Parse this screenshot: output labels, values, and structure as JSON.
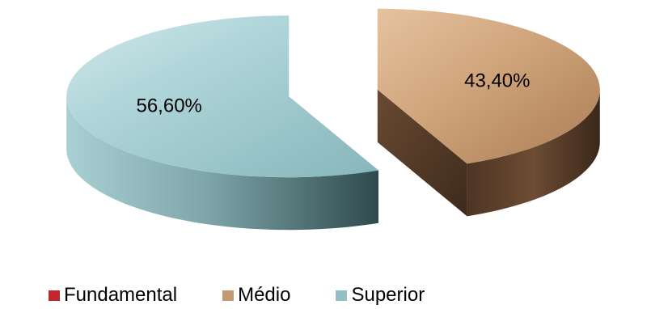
{
  "chart_data": {
    "type": "pie",
    "style": "3d-exploded",
    "categories": [
      "Fundamental",
      "Médio",
      "Superior"
    ],
    "values": [
      0,
      43.4,
      56.6
    ],
    "data_labels": [
      "",
      "43,40%",
      "56,60%"
    ],
    "colors": [
      "#c0282d",
      "#c49a72",
      "#93c0c4"
    ],
    "legend_position": "bottom",
    "title": ""
  },
  "legend": {
    "items": [
      {
        "label": "Fundamental",
        "color": "#c0282d"
      },
      {
        "label": "Médio",
        "color": "#c49a72"
      },
      {
        "label": "Superior",
        "color": "#93c0c4"
      }
    ]
  }
}
